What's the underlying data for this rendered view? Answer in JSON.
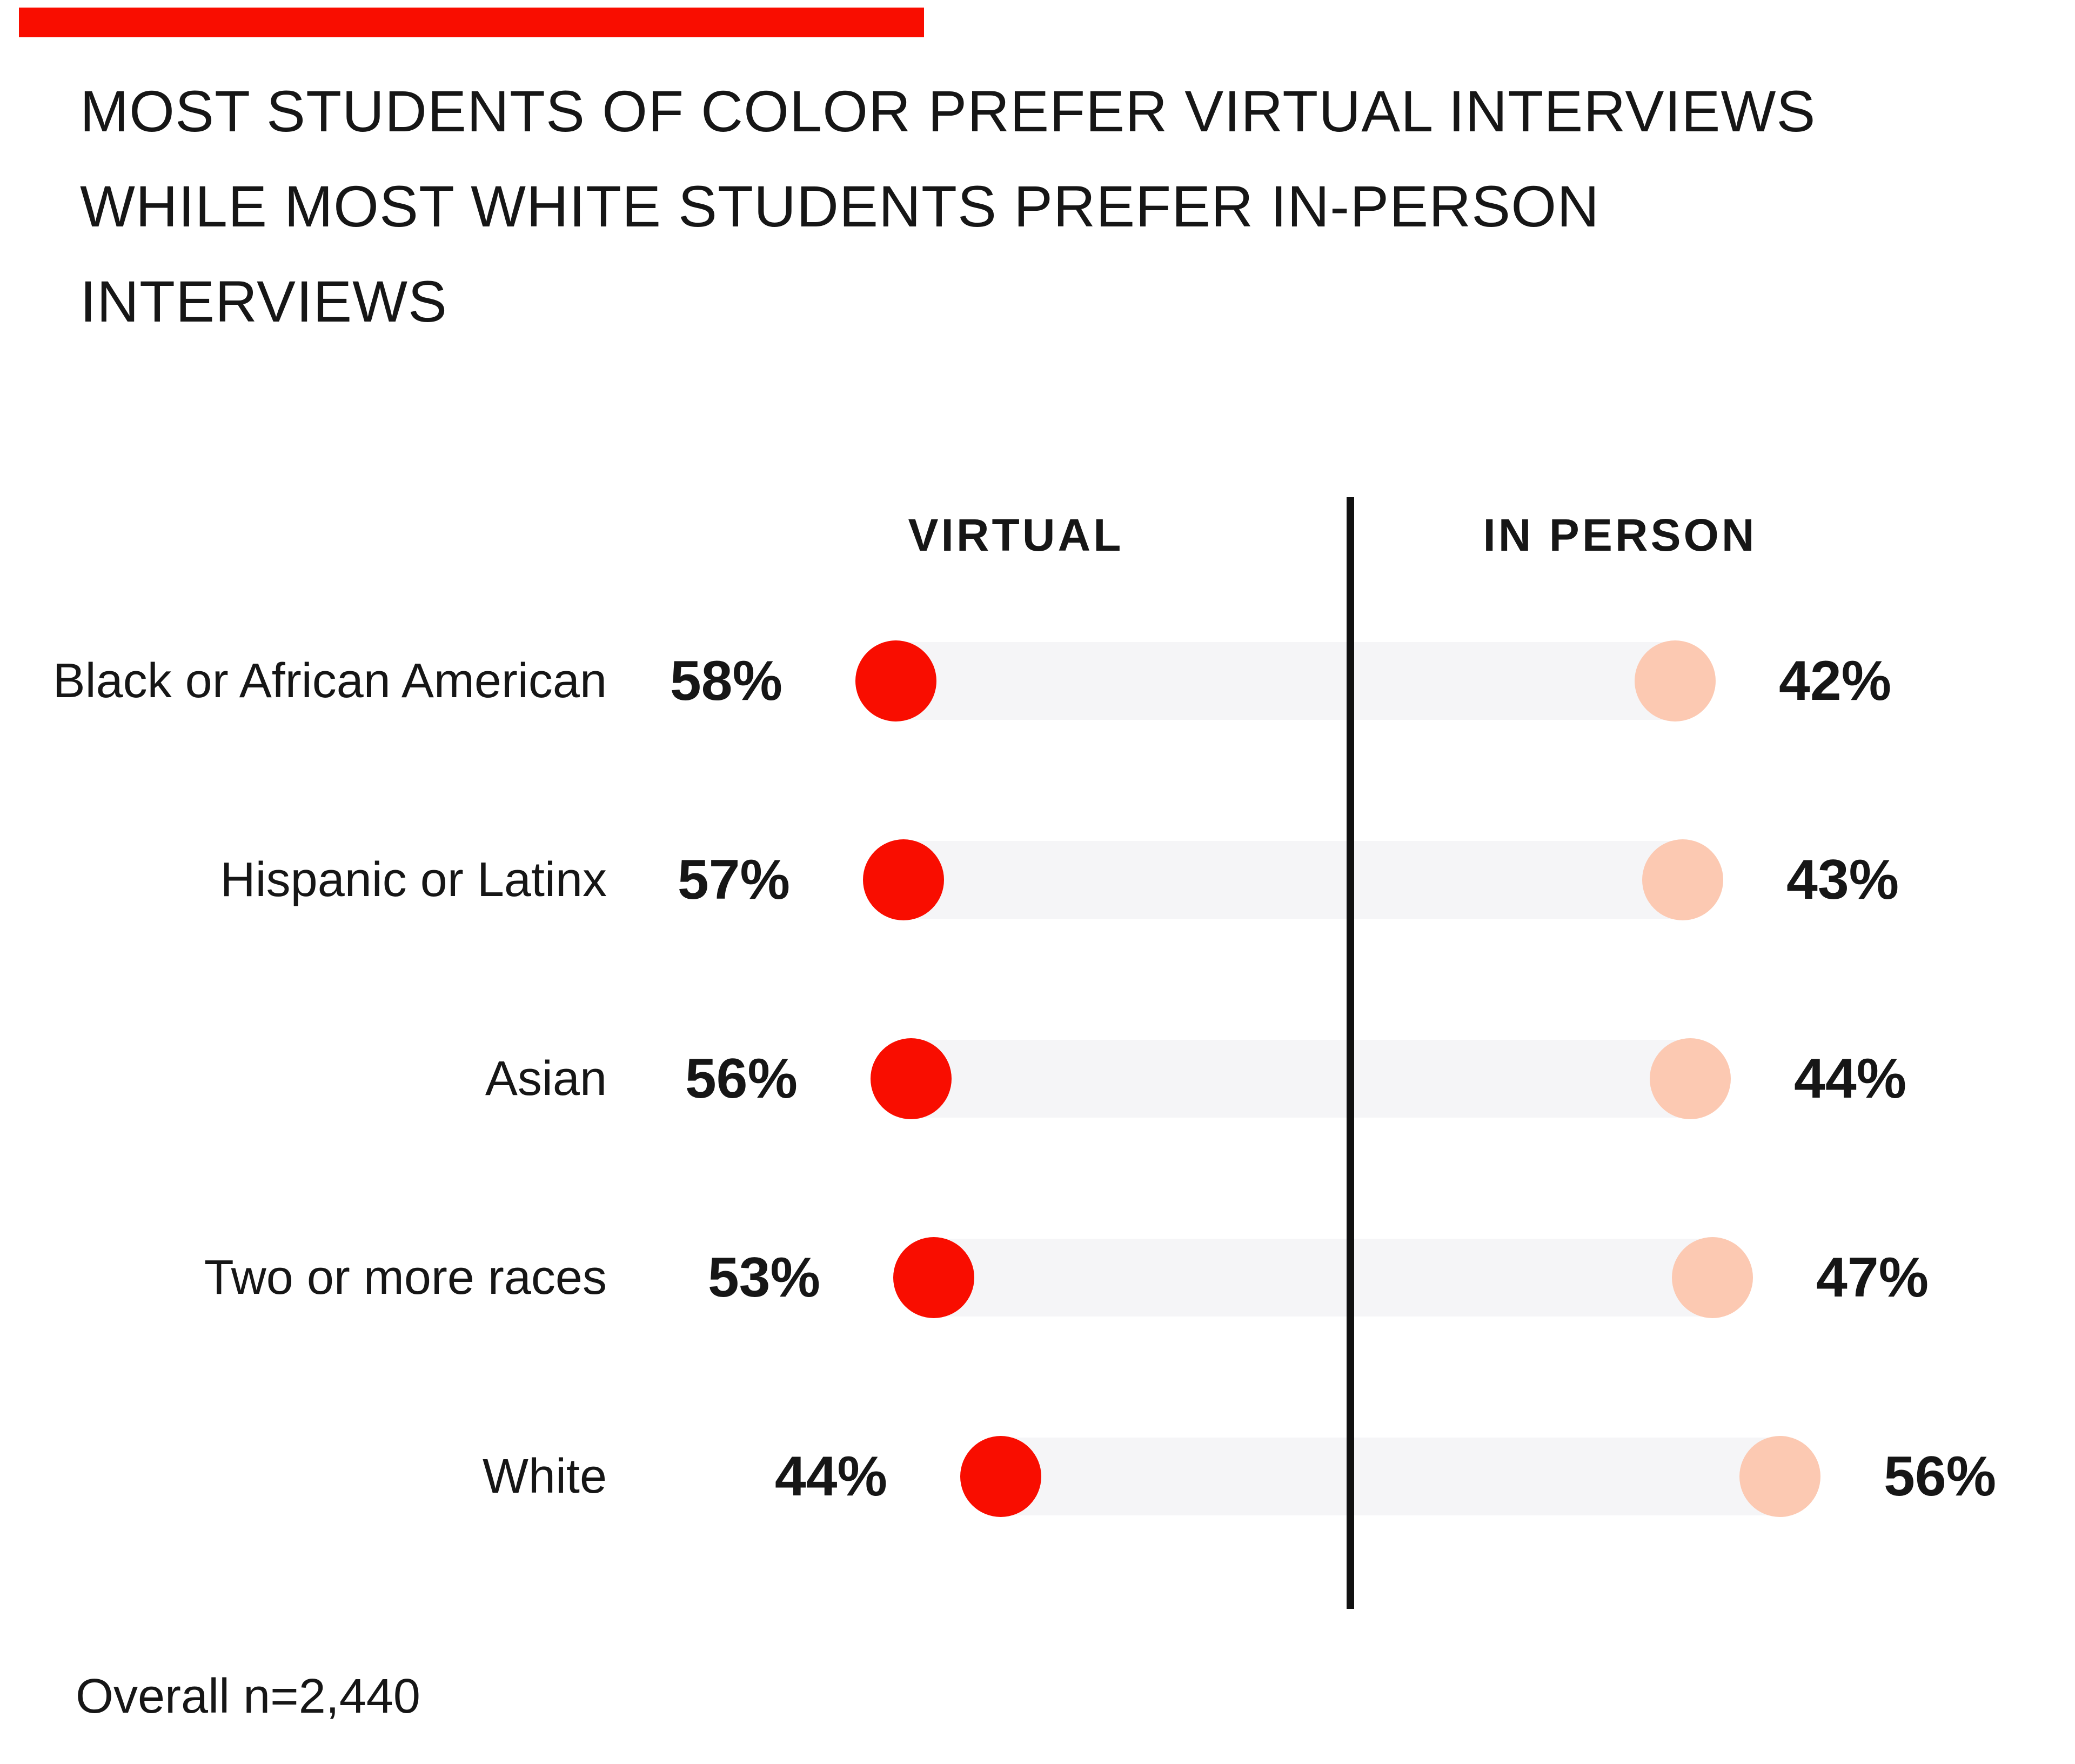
{
  "page": {
    "background": "#ffffff"
  },
  "brand_bar": {
    "color": "#F90D00"
  },
  "title": {
    "lines": [
      "MOST STUDENTS OF COLOR PREFER VIRTUAL INTERVIEWS",
      "WHILE MOST WHITE STUDENTS PREFER IN-PERSON",
      "INTERVIEWS"
    ]
  },
  "chart_data": {
    "type": "dumbbell",
    "column_headers": {
      "left": "VIRTUAL",
      "right": "IN PERSON"
    },
    "categories": [
      "Black or African American",
      "Hispanic or Latinx",
      "Asian",
      "Two or more races",
      "White"
    ],
    "series": [
      {
        "name": "Virtual",
        "values": [
          58,
          57,
          56,
          53,
          44
        ],
        "color": "#F90D00"
      },
      {
        "name": "In person",
        "values": [
          42,
          43,
          44,
          47,
          56
        ],
        "color": "#FCC9B2"
      }
    ],
    "value_suffix": "%",
    "track_color": "#F5F5F7",
    "divider_color": "#111111",
    "legend_position": "none",
    "grid": false,
    "value_range": [
      0,
      100
    ]
  },
  "footer": {
    "note": "Overall n=2,440"
  }
}
